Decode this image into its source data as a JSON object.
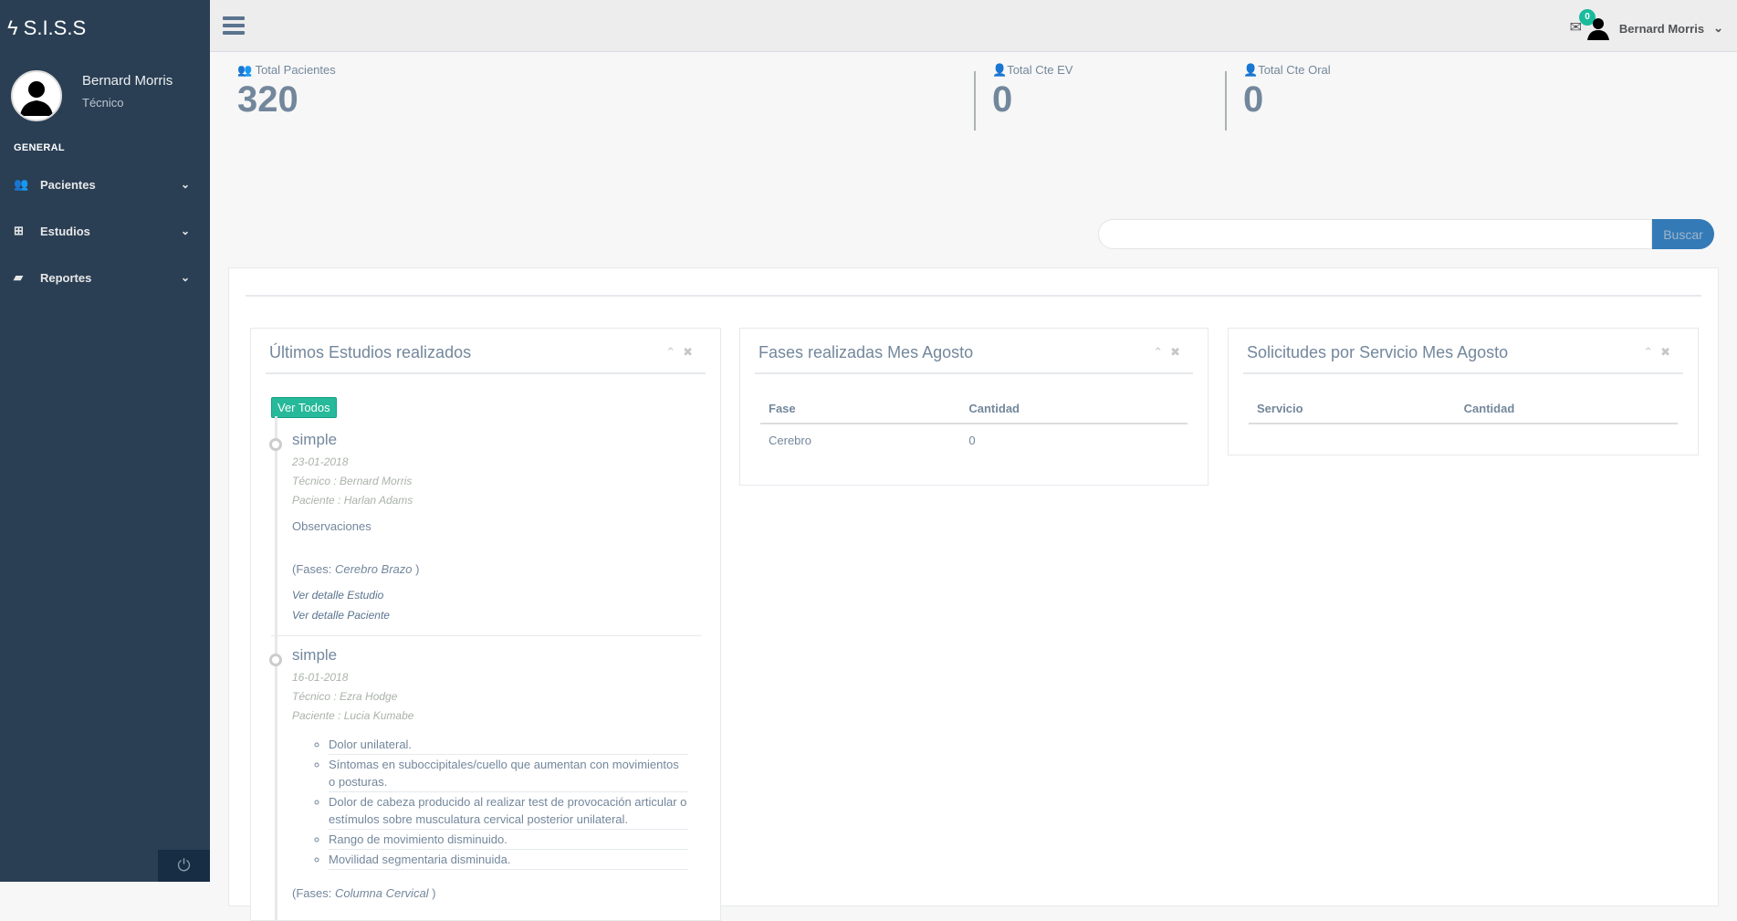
{
  "brand": {
    "name": "S.I.S.S"
  },
  "profile": {
    "name": "Bernard Morris",
    "role": "Técnico"
  },
  "sidebar": {
    "section": "GENERAL",
    "items": [
      {
        "label": "Pacientes",
        "icon": "users-icon"
      },
      {
        "label": "Estudios",
        "icon": "medkit-icon"
      },
      {
        "label": "Reportes",
        "icon": "book-icon"
      }
    ]
  },
  "topbar": {
    "mail_count": "0",
    "user": "Bernard Morris"
  },
  "stats": [
    {
      "label": "Total Pacientes",
      "value": "320"
    },
    {
      "label": "Total Cte EV",
      "value": "0"
    },
    {
      "label": "Total Cte Oral",
      "value": "0"
    }
  ],
  "search": {
    "value": "",
    "button": "Buscar"
  },
  "estudios": {
    "title": "Últimos Estudios realizados",
    "ver_todos": "Ver Todos",
    "items": [
      {
        "type": "simple",
        "date": "23-01-2018",
        "tecnico": "Técnico : Bernard Morris",
        "paciente": "Paciente : Harlan Adams",
        "obs": "Observaciones",
        "fases_prefix": "(Fases: ",
        "fases": "Cerebro Brazo",
        "fases_suffix": " )",
        "link1": "Ver detalle Estudio",
        "link2": "Ver detalle Paciente"
      },
      {
        "type": "simple",
        "date": "16-01-2018",
        "tecnico": "Técnico : Ezra Hodge",
        "paciente": "Paciente : Lucia Kumabe",
        "symptoms": [
          "Dolor unilateral.",
          "Síntomas en suboccipitales/cuello que aumentan con movimientos o posturas.",
          "Dolor de cabeza producido al realizar test de provocación articular o estímulos sobre musculatura cervical posterior unilateral.",
          "Rango de movimiento disminuido.",
          "Movilidad segmentaria disminuida."
        ],
        "fases_prefix": "(Fases: ",
        "fases": "Columna Cervical",
        "fases_suffix": " )"
      }
    ]
  },
  "fases": {
    "title": "Fases realizadas Mes Agosto",
    "headers": [
      "Fase",
      "Cantidad"
    ],
    "rows": [
      [
        "Cerebro",
        "0"
      ]
    ]
  },
  "solicitudes": {
    "title": "Solicitudes por Servicio Mes Agosto",
    "headers": [
      "Servicio",
      "Cantidad"
    ],
    "rows": []
  },
  "colors": {
    "sidebar": "#2a3f54",
    "accent": "#1abb9c",
    "button": "#337ab7"
  }
}
